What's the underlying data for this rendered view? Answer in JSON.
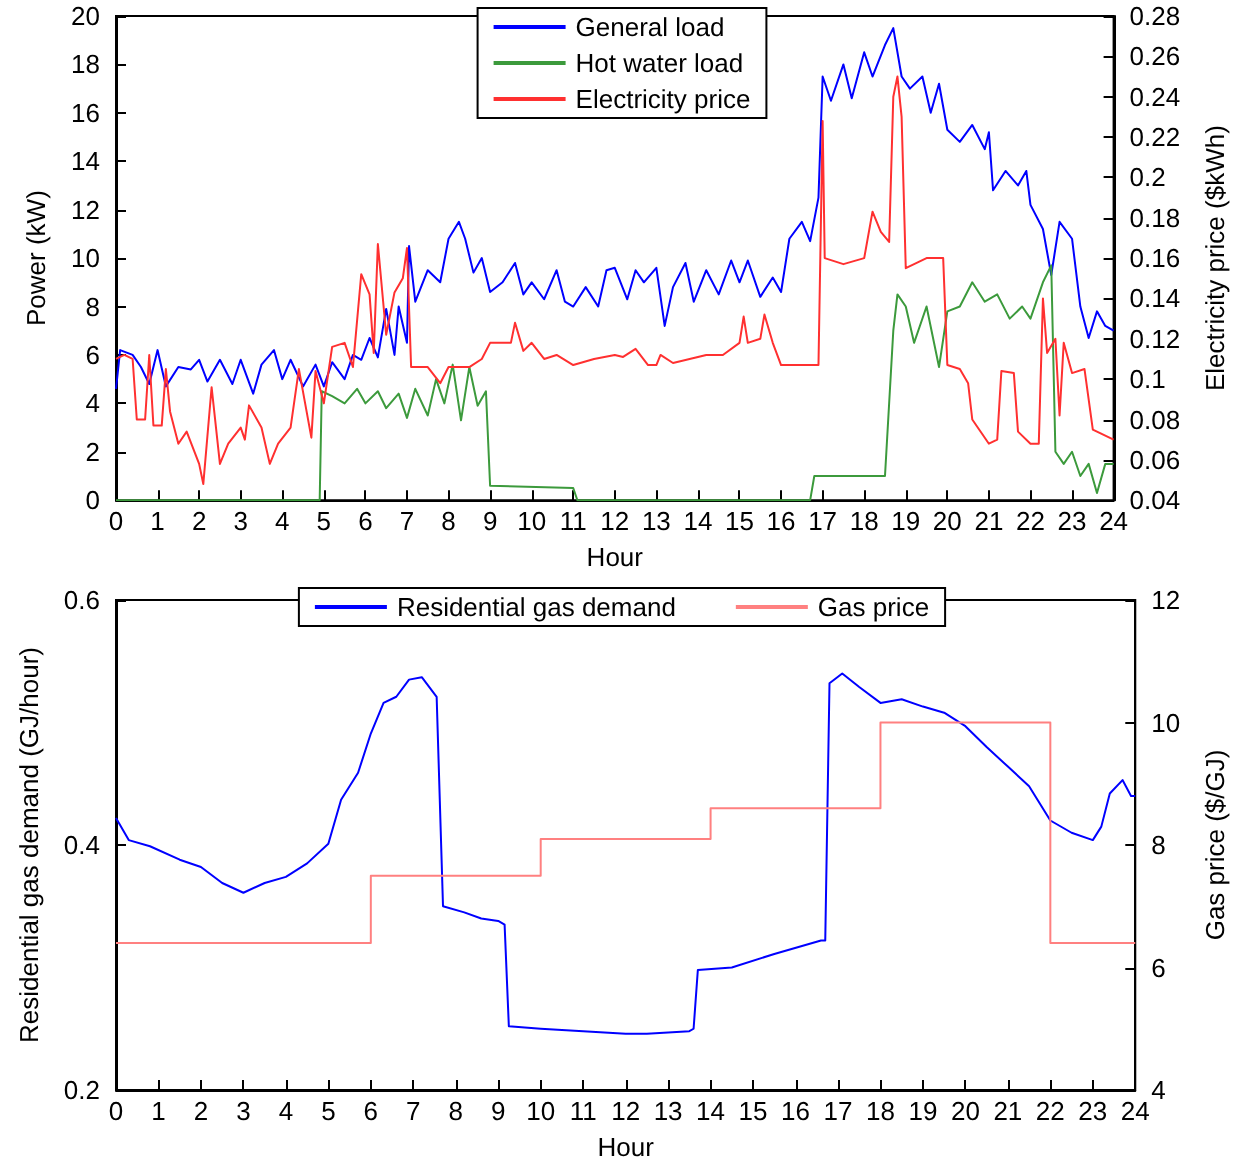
{
  "chart_data": [
    {
      "type": "line",
      "xlabel": "Hour",
      "ylabel": "Power (kW)",
      "y2label": "Electricity price ($kWh)",
      "xlim": [
        0,
        24
      ],
      "xticks": [
        0,
        1,
        2,
        3,
        4,
        5,
        6,
        7,
        8,
        9,
        10,
        11,
        12,
        13,
        14,
        15,
        16,
        17,
        18,
        19,
        20,
        21,
        22,
        23,
        24
      ],
      "ylim": [
        0,
        20
      ],
      "yticks": [
        0,
        2,
        4,
        6,
        8,
        10,
        12,
        14,
        16,
        18,
        20
      ],
      "y2lim": [
        0.04,
        0.28
      ],
      "y2ticks": [
        0.04,
        0.06,
        0.08,
        0.1,
        0.12,
        0.14,
        0.16,
        0.18,
        0.2,
        0.22,
        0.24,
        0.26,
        0.28
      ],
      "legend": "top",
      "grid": false,
      "marker": "none",
      "line_style": "solid",
      "series": [
        {
          "name": "General load",
          "color": "#0000ff",
          "x": [
            0,
            0.1,
            0.4,
            0.6,
            0.8,
            1.0,
            1.2,
            1.5,
            1.8,
            2.0,
            2.2,
            2.5,
            2.8,
            3.0,
            3.3,
            3.5,
            3.8,
            4.0,
            4.2,
            4.5,
            4.8,
            5.0,
            5.2,
            5.5,
            5.7,
            5.9,
            6.1,
            6.3,
            6.5,
            6.7,
            6.8,
            7.0,
            7.05,
            7.2,
            7.5,
            7.8,
            8.0,
            8.25,
            8.4,
            8.6,
            8.8,
            9.0,
            9.3,
            9.6,
            9.8,
            10.0,
            10.3,
            10.6,
            10.8,
            11.0,
            11.3,
            11.6,
            11.8,
            12.0,
            12.3,
            12.5,
            12.7,
            13.0,
            13.2,
            13.4,
            13.7,
            13.9,
            14.2,
            14.5,
            14.8,
            15.0,
            15.2,
            15.5,
            15.8,
            16.0,
            16.2,
            16.5,
            16.7,
            16.9,
            17.0,
            17.2,
            17.5,
            17.7,
            18.0,
            18.2,
            18.5,
            18.7,
            18.9,
            19.1,
            19.4,
            19.6,
            19.8,
            20.0,
            20.3,
            20.6,
            20.9,
            21.0,
            21.1,
            21.4,
            21.7,
            21.9,
            22.0,
            22.3,
            22.5,
            22.7,
            23.0,
            23.2,
            23.4,
            23.6,
            23.8,
            24
          ],
          "values": [
            4.6,
            6.2,
            6.0,
            5.5,
            4.8,
            6.2,
            4.7,
            5.5,
            5.4,
            5.8,
            4.9,
            5.8,
            4.8,
            5.8,
            4.4,
            5.6,
            6.2,
            5.0,
            5.8,
            4.7,
            5.6,
            4.7,
            5.7,
            5.0,
            6.0,
            5.8,
            6.7,
            5.9,
            7.9,
            6.0,
            8.0,
            6.5,
            10.5,
            8.2,
            9.5,
            9.0,
            10.8,
            11.5,
            10.8,
            9.4,
            10.0,
            8.6,
            9.0,
            9.8,
            8.5,
            9.0,
            8.3,
            9.5,
            8.2,
            8.0,
            8.8,
            8.0,
            9.5,
            9.6,
            8.3,
            9.5,
            9.0,
            9.6,
            7.2,
            8.8,
            9.8,
            8.2,
            9.5,
            8.5,
            9.9,
            9.0,
            9.9,
            8.4,
            9.2,
            8.6,
            10.8,
            11.5,
            10.7,
            12.5,
            17.5,
            16.5,
            18.0,
            16.6,
            18.5,
            17.5,
            18.8,
            19.5,
            17.5,
            17.0,
            17.5,
            16.0,
            17.2,
            15.3,
            14.8,
            15.5,
            14.5,
            15.2,
            12.8,
            13.6,
            13.0,
            13.6,
            12.2,
            11.2,
            9.3,
            11.5,
            10.8,
            8.0,
            6.7,
            7.8,
            7.2,
            7.0
          ]
        },
        {
          "name": "Hot water load",
          "color": "#3c9a3c",
          "x": [
            0,
            4.9,
            4.95,
            5.2,
            5.5,
            5.8,
            6.0,
            6.3,
            6.5,
            6.8,
            7.0,
            7.2,
            7.5,
            7.7,
            7.9,
            8.1,
            8.3,
            8.5,
            8.7,
            8.9,
            9.0,
            11.0,
            11.1,
            16.7,
            16.8,
            18.5,
            18.7,
            18.8,
            19.0,
            19.2,
            19.5,
            19.8,
            20.0,
            20.3,
            20.6,
            20.9,
            21.2,
            21.5,
            21.8,
            22.0,
            22.3,
            22.5,
            22.6,
            22.8,
            23.0,
            23.2,
            23.4,
            23.6,
            23.8,
            24
          ],
          "values": [
            0,
            0,
            4.5,
            4.3,
            4.0,
            4.6,
            4.0,
            4.5,
            3.8,
            4.4,
            3.4,
            4.6,
            3.5,
            5.0,
            4.0,
            5.6,
            3.3,
            5.5,
            3.9,
            4.5,
            0.6,
            0.5,
            0,
            0,
            1.0,
            1.0,
            7.0,
            8.5,
            8.0,
            6.5,
            8.0,
            5.5,
            7.8,
            8.0,
            9.0,
            8.2,
            8.5,
            7.5,
            8.0,
            7.5,
            9.0,
            9.7,
            2.0,
            1.5,
            2.0,
            1.0,
            1.5,
            0.3,
            1.5,
            1.5
          ]
        },
        {
          "name": "Electricity price",
          "color": "#ff3030",
          "axis": "y2",
          "x": [
            0,
            0.2,
            0.4,
            0.5,
            0.7,
            0.8,
            0.9,
            1.1,
            1.2,
            1.3,
            1.5,
            1.7,
            2.0,
            2.1,
            2.3,
            2.5,
            2.7,
            3.0,
            3.1,
            3.2,
            3.5,
            3.7,
            3.9,
            4.2,
            4.4,
            4.7,
            4.8,
            5.0,
            5.2,
            5.5,
            5.7,
            5.9,
            6.1,
            6.2,
            6.3,
            6.5,
            6.7,
            6.9,
            7.0,
            7.1,
            7.5,
            7.8,
            8.0,
            8.5,
            8.8,
            9.0,
            9.5,
            9.6,
            9.8,
            10.0,
            10.3,
            10.6,
            11.0,
            11.5,
            12.0,
            12.2,
            12.5,
            12.8,
            13.0,
            13.1,
            13.4,
            13.8,
            14.2,
            14.6,
            15.0,
            15.1,
            15.2,
            15.5,
            15.6,
            15.8,
            16.0,
            16.5,
            16.9,
            17.0,
            17.05,
            17.5,
            18.0,
            18.2,
            18.4,
            18.6,
            18.7,
            18.8,
            18.9,
            19.0,
            19.5,
            19.9,
            20.0,
            20.3,
            20.5,
            20.6,
            21.0,
            21.2,
            21.3,
            21.6,
            21.7,
            22.0,
            22.2,
            22.3,
            22.4,
            22.6,
            22.7,
            22.8,
            23.0,
            23.3,
            23.5,
            24
          ],
          "values": [
            0.11,
            0.112,
            0.11,
            0.08,
            0.08,
            0.112,
            0.077,
            0.077,
            0.105,
            0.084,
            0.068,
            0.074,
            0.058,
            0.048,
            0.096,
            0.058,
            0.068,
            0.076,
            0.07,
            0.087,
            0.076,
            0.058,
            0.068,
            0.076,
            0.105,
            0.071,
            0.104,
            0.088,
            0.116,
            0.118,
            0.106,
            0.152,
            0.142,
            0.113,
            0.167,
            0.122,
            0.143,
            0.15,
            0.165,
            0.106,
            0.106,
            0.098,
            0.106,
            0.106,
            0.11,
            0.118,
            0.118,
            0.128,
            0.114,
            0.118,
            0.11,
            0.112,
            0.107,
            0.11,
            0.112,
            0.111,
            0.115,
            0.107,
            0.107,
            0.112,
            0.108,
            0.11,
            0.112,
            0.112,
            0.118,
            0.131,
            0.118,
            0.12,
            0.132,
            0.118,
            0.107,
            0.107,
            0.107,
            0.228,
            0.16,
            0.157,
            0.16,
            0.183,
            0.173,
            0.168,
            0.24,
            0.25,
            0.23,
            0.155,
            0.16,
            0.16,
            0.107,
            0.105,
            0.098,
            0.08,
            0.068,
            0.07,
            0.104,
            0.103,
            0.074,
            0.068,
            0.068,
            0.14,
            0.113,
            0.12,
            0.082,
            0.118,
            0.103,
            0.105,
            0.075,
            0.07
          ]
        }
      ]
    },
    {
      "type": "line",
      "xlabel": "Hour",
      "ylabel": "Residential gas demand (GJ/hour)",
      "y2label": "Gas price ($/GJ)",
      "xlim": [
        0,
        24
      ],
      "xticks": [
        0,
        1,
        2,
        3,
        4,
        5,
        6,
        7,
        8,
        9,
        10,
        11,
        12,
        13,
        14,
        15,
        16,
        17,
        18,
        19,
        20,
        21,
        22,
        23,
        24
      ],
      "ylim": [
        0.2,
        0.6
      ],
      "yticks": [
        0.2,
        0.4,
        0.6
      ],
      "y2lim": [
        4,
        12
      ],
      "y2ticks": [
        4,
        6,
        8,
        10,
        12
      ],
      "legend": "top",
      "grid": false,
      "marker": "none",
      "line_style": "solid",
      "series": [
        {
          "name": "Residential gas demand",
          "color": "#0000ff",
          "x": [
            0,
            0.3,
            0.8,
            1.5,
            2.0,
            2.5,
            3.0,
            3.5,
            4.0,
            4.5,
            5.0,
            5.3,
            5.7,
            6.0,
            6.3,
            6.6,
            6.9,
            7.2,
            7.55,
            7.7,
            8.2,
            8.6,
            9.0,
            9.15,
            9.25,
            10,
            11,
            12,
            12.5,
            13.5,
            13.6,
            13.7,
            14.5,
            15.5,
            16.6,
            16.7,
            16.8,
            17.1,
            17.5,
            18.0,
            18.5,
            19.0,
            19.5,
            20.0,
            20.5,
            21.0,
            21.5,
            22.0,
            22.5,
            23.0,
            23.2,
            23.4,
            23.7,
            23.9,
            24
          ],
          "values": [
            0.422,
            0.404,
            0.399,
            0.388,
            0.382,
            0.369,
            0.361,
            0.369,
            0.374,
            0.385,
            0.401,
            0.437,
            0.459,
            0.491,
            0.516,
            0.521,
            0.535,
            0.537,
            0.521,
            0.35,
            0.345,
            0.34,
            0.338,
            0.335,
            0.252,
            0.25,
            0.248,
            0.246,
            0.246,
            0.248,
            0.25,
            0.298,
            0.3,
            0.311,
            0.322,
            0.322,
            0.532,
            0.54,
            0.529,
            0.516,
            0.519,
            0.513,
            0.508,
            0.497,
            0.48,
            0.464,
            0.448,
            0.42,
            0.41,
            0.404,
            0.415,
            0.442,
            0.453,
            0.44,
            0.44
          ]
        },
        {
          "name": "Gas price",
          "color": "#ff8080",
          "type": "step",
          "axis": "y2",
          "x": [
            0,
            6,
            10,
            14,
            18,
            22,
            24
          ],
          "values": [
            6.4,
            7.5,
            8.1,
            8.6,
            10.0,
            6.4,
            6.4
          ]
        }
      ]
    }
  ]
}
